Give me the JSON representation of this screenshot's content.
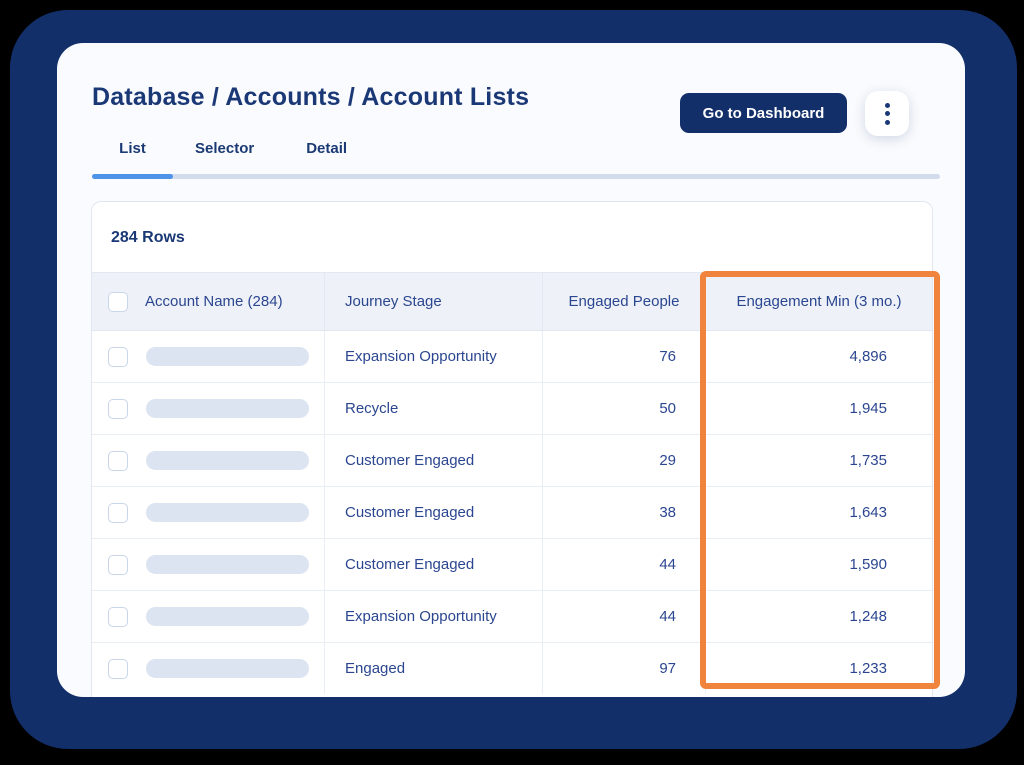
{
  "header": {
    "title": "Database / Accounts / Account Lists",
    "dashboard_button": "Go to Dashboard"
  },
  "tabs": [
    {
      "label": "List",
      "active": true
    },
    {
      "label": "Selector",
      "active": false
    },
    {
      "label": "Detail",
      "active": false
    }
  ],
  "table": {
    "row_count_label": "284 Rows",
    "columns": [
      "Account Name (284)",
      "Journey Stage",
      "Engaged People",
      "Engagement Min (3 mo.)"
    ],
    "rows": [
      {
        "journey_stage": "Expansion Opportunity",
        "engaged_people": "76",
        "engagement_min": "4,896"
      },
      {
        "journey_stage": "Recycle",
        "engaged_people": "50",
        "engagement_min": "1,945"
      },
      {
        "journey_stage": "Customer Engaged",
        "engaged_people": "29",
        "engagement_min": "1,735"
      },
      {
        "journey_stage": "Customer Engaged",
        "engaged_people": "38",
        "engagement_min": "1,643"
      },
      {
        "journey_stage": "Customer Engaged",
        "engaged_people": "44",
        "engagement_min": "1,590"
      },
      {
        "journey_stage": "Expansion Opportunity",
        "engaged_people": "44",
        "engagement_min": "1,248"
      },
      {
        "journey_stage": "Engaged",
        "engaged_people": "97",
        "engagement_min": "1,233"
      }
    ],
    "highlighted_column": "Engagement Min (3 mo.)"
  },
  "icons": {
    "kebab": "kebab-menu-icon",
    "checkbox": "checkbox-icon"
  },
  "colors": {
    "frame_navy": "#132F6A",
    "title_navy": "#1A3876",
    "table_text_navy": "#2B4690",
    "active_tab_blue": "#4D93E8",
    "highlight_orange": "#F0843C",
    "header_row_bg": "#EEF2F8",
    "placeholder_pill": "#DCE4F1"
  }
}
